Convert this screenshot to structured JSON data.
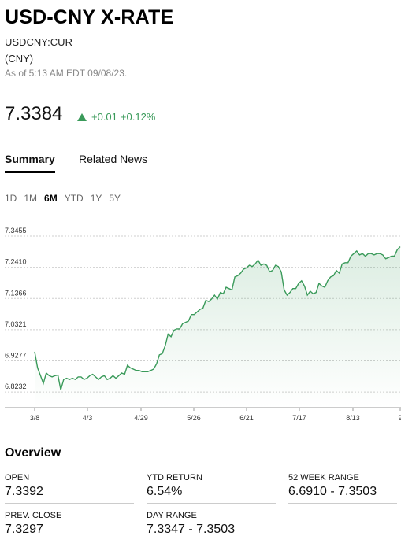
{
  "header": {
    "title": "USD-CNY X-RATE",
    "ticker": "USDCNY:CUR",
    "currency": "(CNY)",
    "as_of": "As of 5:13 AM EDT 09/08/23."
  },
  "quote": {
    "price": "7.3384",
    "change": "+0.01",
    "change_pct": "+0.12%",
    "direction_icon": "triangle-up-icon",
    "accent_color": "#3a9a5a"
  },
  "tabs": [
    {
      "label": "Summary",
      "active": true
    },
    {
      "label": "Related News",
      "active": false
    }
  ],
  "ranges": [
    "1D",
    "1M",
    "6M",
    "YTD",
    "1Y",
    "5Y"
  ],
  "active_range": "6M",
  "chart_data": {
    "type": "area",
    "y_ticks": [
      "7.3455",
      "7.2410",
      "7.1366",
      "7.0321",
      "6.9277",
      "6.8232"
    ],
    "x_ticks": [
      "3/8",
      "4/3",
      "4/29",
      "5/26",
      "6/21",
      "7/17",
      "8/13",
      "9"
    ],
    "ylim": [
      6.7709,
      7.3455
    ],
    "grid": true,
    "line_color": "#3a9a5a",
    "series": [
      {
        "values": [
          6.9582,
          6.9043,
          6.8782,
          6.8521,
          6.887,
          6.8783,
          6.874,
          6.8782,
          6.88,
          6.8304,
          6.8652,
          6.8696,
          6.8652,
          6.8696,
          6.8652,
          6.8739,
          6.8739,
          6.8652,
          6.8696,
          6.8782,
          6.8826,
          6.8739,
          6.8652,
          6.8739,
          6.8782,
          6.8652,
          6.8696,
          6.8782,
          6.8696,
          6.8782,
          6.887,
          6.8826,
          6.913,
          6.9043,
          6.9,
          6.8956,
          6.8956,
          6.8913,
          6.8913,
          6.8913,
          6.8956,
          6.9,
          6.9174,
          6.9478,
          6.9522,
          6.9783,
          7.0174,
          7.0087,
          7.0304,
          7.0348,
          7.0348,
          7.0522,
          7.0565,
          7.0609,
          7.0826,
          7.0826,
          7.0913,
          7.1,
          7.1043,
          7.1304,
          7.1261,
          7.1348,
          7.1478,
          7.1348,
          7.1565,
          7.1522,
          7.1739,
          7.1696,
          7.1652,
          7.2087,
          7.213,
          7.2217,
          7.2348,
          7.2391,
          7.2478,
          7.2435,
          7.2522,
          7.2652,
          7.2478,
          7.2522,
          7.2478,
          7.2261,
          7.2304,
          7.2478,
          7.2435,
          7.2261,
          7.1652,
          7.1478,
          7.1565,
          7.1696,
          7.1696,
          7.187,
          7.1957,
          7.1783,
          7.1478,
          7.1609,
          7.1522,
          7.1565,
          7.187,
          7.1783,
          7.1739,
          7.1957,
          7.2087,
          7.213,
          7.2304,
          7.2217,
          7.2522,
          7.2565,
          7.2565,
          7.2783,
          7.287,
          7.2957,
          7.2826,
          7.287,
          7.2783,
          7.287,
          7.287,
          7.2826,
          7.287,
          7.287,
          7.2826,
          7.2696,
          7.2739,
          7.2783,
          7.2783,
          7.3,
          7.31
        ]
      }
    ]
  },
  "overview": {
    "title": "Overview",
    "stats": [
      {
        "label": "OPEN",
        "value": "7.3392"
      },
      {
        "label": "YTD RETURN",
        "value": "6.54%"
      },
      {
        "label": "52 WEEK RANGE",
        "value": "6.6910 - 7.3503"
      },
      {
        "label": "PREV. CLOSE",
        "value": "7.3297"
      },
      {
        "label": "DAY RANGE",
        "value": "7.3347 - 7.3503"
      }
    ]
  }
}
